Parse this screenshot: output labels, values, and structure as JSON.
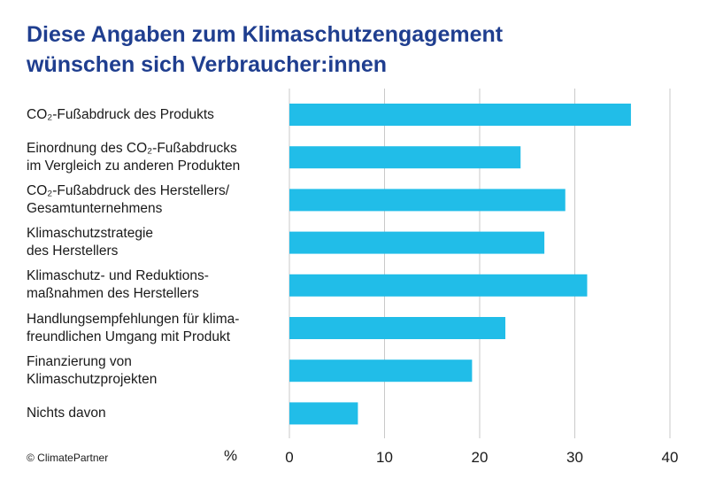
{
  "title": {
    "line1": "Diese Angaben zum Klimaschutzengagement",
    "line2": "wünschen sich Verbraucher:innen"
  },
  "source": "© ClimatePartner",
  "chart_data": {
    "type": "bar",
    "orientation": "horizontal",
    "categories": [
      [
        "CO₂-Fußabdruck des Produkts"
      ],
      [
        "Einordnung des CO₂-Fußabdrucks",
        "im Vergleich zu anderen Produkten"
      ],
      [
        "CO₂-Fußabdruck des Herstellers/",
        "Gesamtunternehmens"
      ],
      [
        "Klimaschutzstrategie",
        "des Herstellers"
      ],
      [
        "Klimaschutz- und Reduktions-",
        "maßnahmen des Herstellers"
      ],
      [
        "Handlungsempfehlungen für klima-",
        "freundlichen Umgang mit Produkt"
      ],
      [
        "Finanzierung von",
        "Klimaschutzprojekten"
      ],
      [
        "Nichts davon"
      ]
    ],
    "values": [
      35.9,
      24.3,
      29.0,
      26.8,
      31.3,
      22.7,
      19.2,
      7.2
    ],
    "xlabel": "%",
    "xlim": [
      0,
      40
    ],
    "xticks": [
      0,
      10,
      20,
      30,
      40
    ],
    "grid": true,
    "bar_color": "#21bde8",
    "grid_color": "#c9c9c9"
  }
}
